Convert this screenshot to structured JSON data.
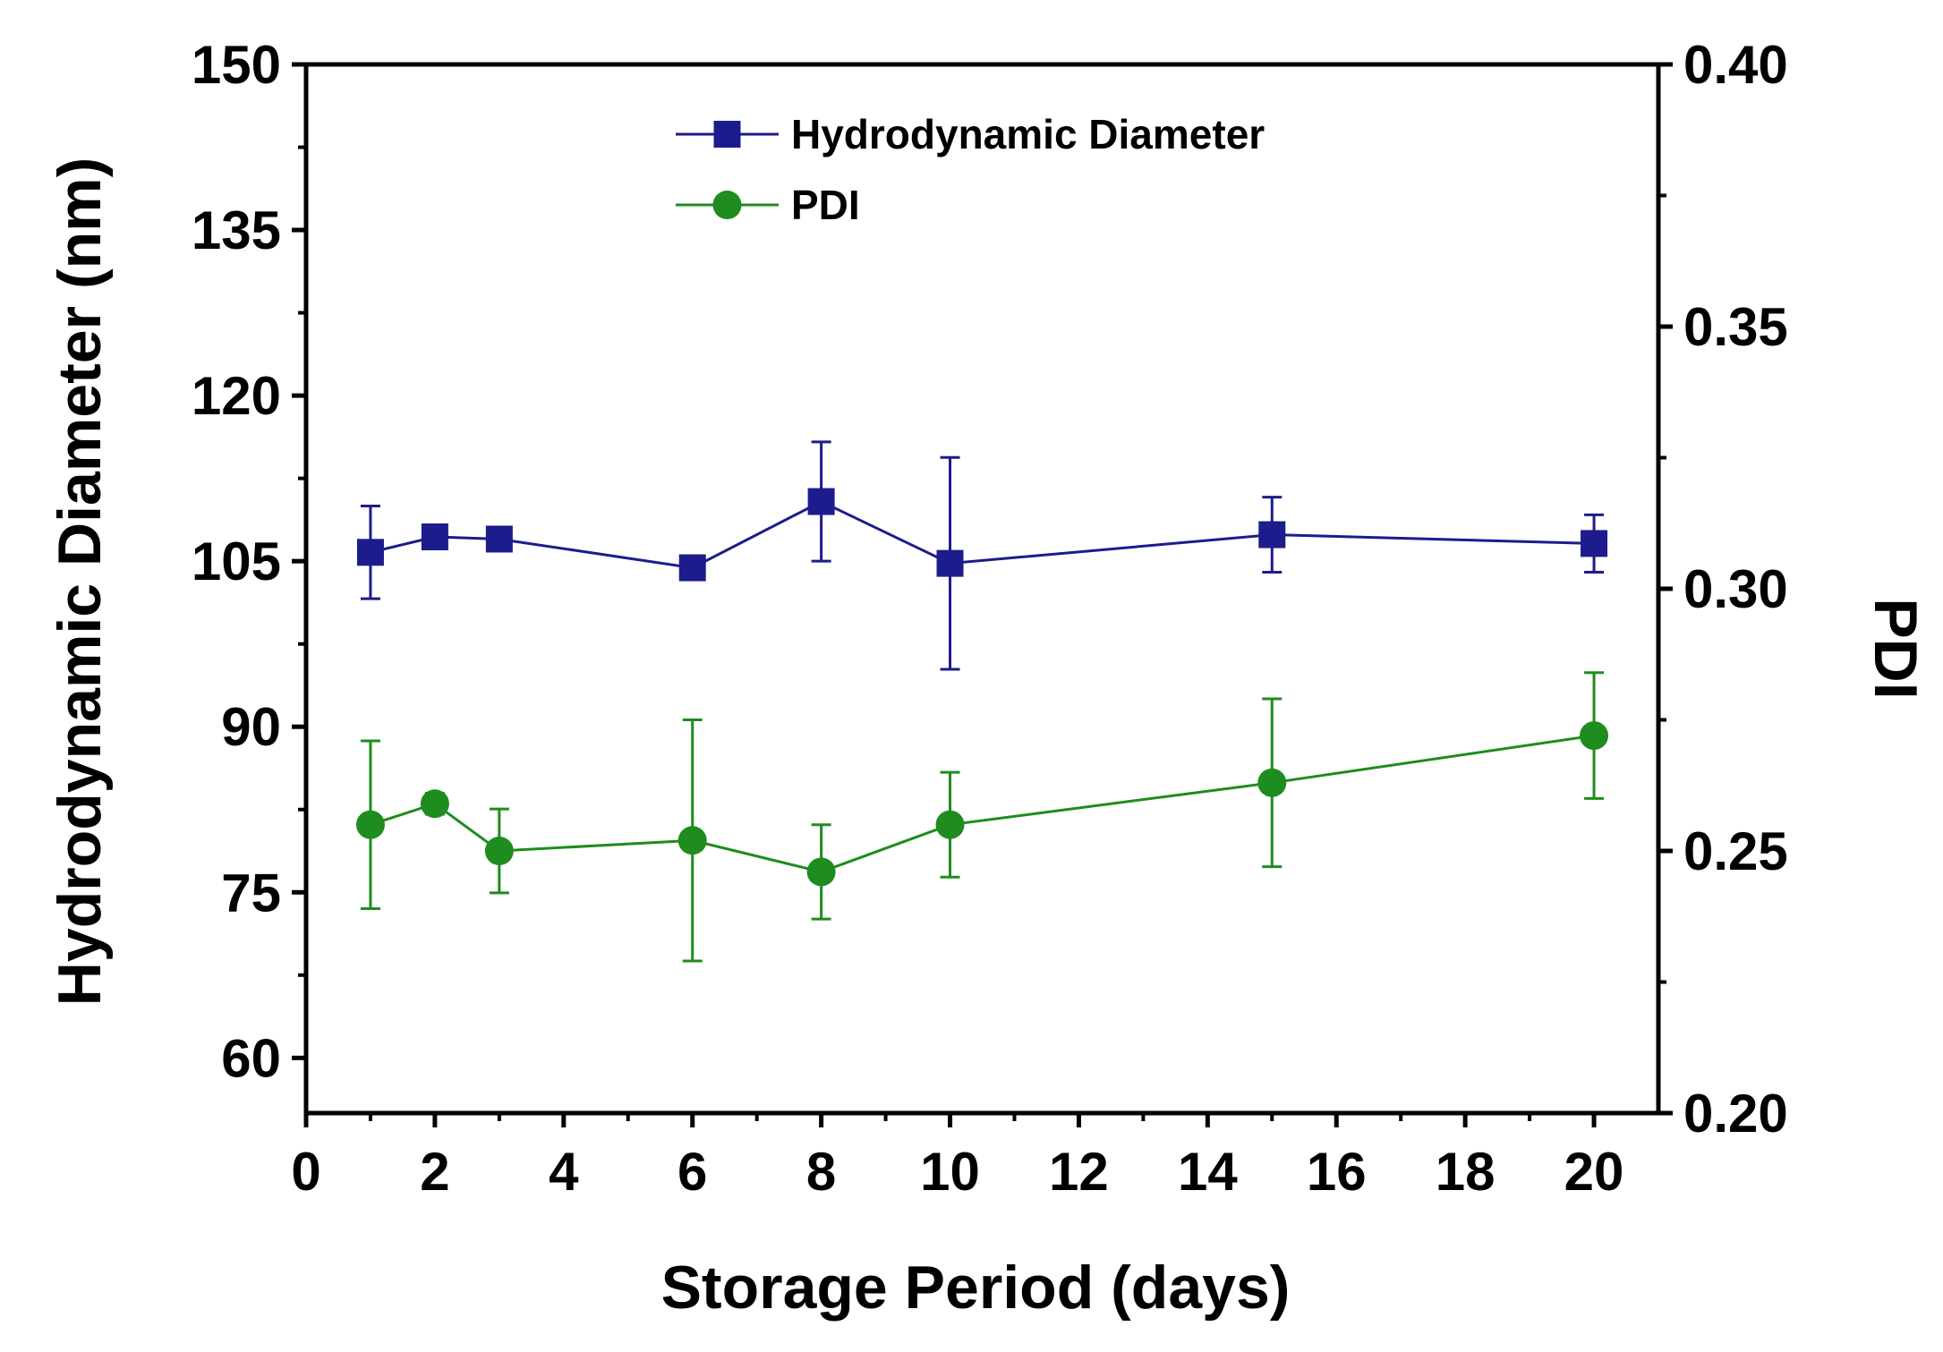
{
  "chart_data": {
    "type": "line",
    "title": "",
    "xlabel": "Storage Period (days)",
    "ylabel_left": "Hydrodynamic Diameter (nm)",
    "ylabel_right": "PDI",
    "xlim": [
      0,
      21
    ],
    "ylim_left": [
      55,
      150
    ],
    "ylim_right": [
      0.2,
      0.4
    ],
    "x_ticks": [
      0,
      2,
      4,
      6,
      8,
      10,
      12,
      14,
      16,
      18,
      20
    ],
    "y_left_ticks": [
      60,
      75,
      90,
      105,
      120,
      135,
      150
    ],
    "y_right_ticks": [
      "0.20",
      "0.25",
      "0.30",
      "0.35",
      "0.40"
    ],
    "legend_position": "top-center",
    "series": [
      {
        "name": "Hydrodynamic Diameter",
        "axis": "left",
        "marker": "square",
        "color": "#1c1c8c",
        "x": [
          1,
          2,
          3,
          6,
          8,
          10,
          15,
          20
        ],
        "values": [
          105.8,
          107.2,
          107.0,
          104.4,
          110.4,
          104.8,
          107.4,
          106.6
        ],
        "error": [
          4.2,
          0.5,
          0.6,
          0.4,
          5.4,
          9.6,
          3.4,
          2.6
        ]
      },
      {
        "name": "PDI",
        "axis": "right",
        "marker": "circle",
        "color": "#1e8c1e",
        "x": [
          1,
          2,
          3,
          6,
          8,
          10,
          15,
          20
        ],
        "values": [
          0.255,
          0.259,
          0.25,
          0.252,
          0.246,
          0.255,
          0.263,
          0.272
        ],
        "error": [
          0.016,
          0.002,
          0.008,
          0.023,
          0.009,
          0.01,
          0.016,
          0.012
        ]
      }
    ]
  }
}
